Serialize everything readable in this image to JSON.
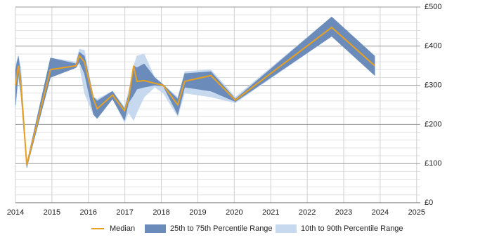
{
  "chart_data": {
    "type": "line",
    "x": [
      2014.0,
      2014.08,
      2014.15,
      2014.31,
      2014.96,
      2015.66,
      2015.75,
      2015.89,
      2016.14,
      2016.24,
      2016.66,
      2016.99,
      2017.1,
      2017.24,
      2017.33,
      2017.53,
      2017.82,
      2018.05,
      2018.45,
      2018.64,
      2019.36,
      2020.03,
      2022.67,
      2023.85
    ],
    "series": [
      {
        "name": "10th to 90th Percentile Range",
        "color": "#c6d9ee",
        "low": [
          235,
          320,
          270,
          88,
          320,
          345,
          355,
          280,
          225,
          215,
          265,
          205,
          230,
          210,
          230,
          270,
          295,
          280,
          220,
          280,
          270,
          255,
          425,
          325
        ],
        "high": [
          350,
          375,
          345,
          102,
          370,
          360,
          392,
          390,
          270,
          265,
          285,
          245,
          285,
          350,
          375,
          380,
          320,
          302,
          270,
          335,
          340,
          270,
          475,
          375
        ]
      },
      {
        "name": "25th to 75th Percentile Range",
        "color": "#6b8cba",
        "low": [
          250,
          330,
          280,
          90,
          320,
          345,
          360,
          330,
          225,
          215,
          265,
          210,
          255,
          275,
          290,
          295,
          300,
          298,
          225,
          295,
          285,
          258,
          425,
          325
        ],
        "high": [
          340,
          375,
          320,
          100,
          370,
          355,
          385,
          375,
          270,
          260,
          285,
          240,
          275,
          350,
          345,
          355,
          320,
          302,
          265,
          330,
          335,
          265,
          475,
          375
        ]
      },
      {
        "name": "Median",
        "color": "#e8a020",
        "values": [
          300,
          350,
          300,
          97,
          340,
          350,
          375,
          360,
          265,
          240,
          275,
          235,
          265,
          350,
          310,
          312,
          305,
          300,
          250,
          310,
          325,
          262,
          448,
          350
        ]
      }
    ],
    "xlim": [
      2014,
      2025.1
    ],
    "xticks": [
      2014,
      2015,
      2016,
      2017,
      2018,
      2019,
      2020,
      2021,
      2022,
      2023,
      2024,
      2025
    ],
    "ylim": [
      0,
      500
    ],
    "yticks": [
      {
        "value": 0,
        "label": "£0"
      },
      {
        "value": 100,
        "label": "£100"
      },
      {
        "value": 200,
        "label": "£200"
      },
      {
        "value": 300,
        "label": "£300"
      },
      {
        "value": 400,
        "label": "£400"
      },
      {
        "value": 500,
        "label": "£500"
      }
    ],
    "y_minor_ticks": [
      20,
      40,
      60,
      80,
      120,
      140,
      160,
      180,
      220,
      240,
      260,
      280,
      320,
      340,
      360,
      380,
      420,
      440,
      460,
      480
    ],
    "grid": true,
    "legend": "bottom"
  }
}
